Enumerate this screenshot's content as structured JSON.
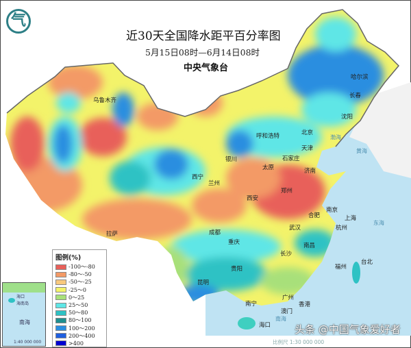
{
  "header": {
    "title": "近30天全国降水距平百分率图",
    "subtitle": "5月15日08时—6月14日08时",
    "organization": "中央气象台",
    "logo_glyph": "气"
  },
  "cities": [
    "乌鲁木齐",
    "哈尔滨",
    "长春",
    "沈阳",
    "呼和浩特",
    "北京",
    "天津",
    "银川",
    "太原",
    "石家庄",
    "西宁",
    "兰州",
    "济南",
    "郑州",
    "西安",
    "拉萨",
    "合肥",
    "南京",
    "上海",
    "成都",
    "武汉",
    "杭州",
    "重庆",
    "南昌",
    "长沙",
    "台北",
    "福州",
    "贵阳",
    "昆明",
    "广州",
    "南宁",
    "澳门",
    "香港",
    "海口"
  ],
  "legend": {
    "title": "图例(%)",
    "items": [
      {
        "label": "-100～-80",
        "color": "#e8605a"
      },
      {
        "label": "-80～-50",
        "color": "#f39a66"
      },
      {
        "label": "-50～-25",
        "color": "#f8c97e"
      },
      {
        "label": "-25～0",
        "color": "#f3f36a"
      },
      {
        "label": "0～25",
        "color": "#a8e07a"
      },
      {
        "label": "25～50",
        "color": "#5fe6e6"
      },
      {
        "label": "50～80",
        "color": "#2ec2c4"
      },
      {
        "label": "80～100",
        "color": "#1e8f8f"
      },
      {
        "label": "100～200",
        "color": "#2a8ee0"
      },
      {
        "label": "200～400",
        "color": "#1f5fe0"
      },
      {
        "label": ">400",
        "color": "#0000d0"
      }
    ]
  },
  "inset": {
    "sea_label": "南海",
    "island_label": "海南岛",
    "scale": "1:40 000 000",
    "haikou": "海口"
  },
  "sea_labels": [
    "渤海",
    "黄海",
    "东海",
    "南海"
  ],
  "footer": {
    "scale_text": "比例尺 1:30 000 000",
    "watermark": "头条 @中国气象爱好者"
  }
}
